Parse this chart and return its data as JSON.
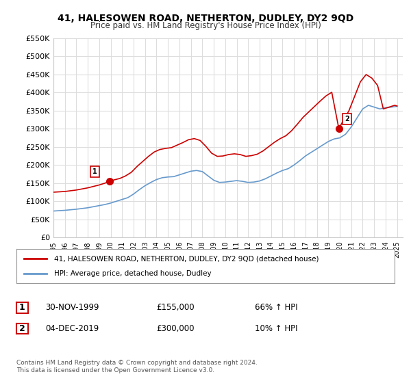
{
  "title": "41, HALESOWEN ROAD, NETHERTON, DUDLEY, DY2 9QD",
  "subtitle": "Price paid vs. HM Land Registry's House Price Index (HPI)",
  "legend_line1": "41, HALESOWEN ROAD, NETHERTON, DUDLEY, DY2 9QD (detached house)",
  "legend_line2": "HPI: Average price, detached house, Dudley",
  "annotation1_label": "1",
  "annotation1_date": "30-NOV-1999",
  "annotation1_price": "£155,000",
  "annotation1_hpi": "66% ↑ HPI",
  "annotation2_label": "2",
  "annotation2_date": "04-DEC-2019",
  "annotation2_price": "£300,000",
  "annotation2_hpi": "10% ↑ HPI",
  "footnote": "Contains HM Land Registry data © Crown copyright and database right 2024.\nThis data is licensed under the Open Government Licence v3.0.",
  "ylim": [
    0,
    550000
  ],
  "yticks": [
    0,
    50000,
    100000,
    150000,
    200000,
    250000,
    300000,
    350000,
    400000,
    450000,
    500000,
    550000
  ],
  "ytick_labels": [
    "£0",
    "£50K",
    "£100K",
    "£150K",
    "£200K",
    "£250K",
    "£300K",
    "£350K",
    "£400K",
    "£450K",
    "£500K",
    "£550K"
  ],
  "xlim_start": 1995.0,
  "xlim_end": 2025.5,
  "xticks": [
    1995,
    1996,
    1997,
    1998,
    1999,
    2000,
    2001,
    2002,
    2003,
    2004,
    2005,
    2006,
    2007,
    2008,
    2009,
    2010,
    2011,
    2012,
    2013,
    2014,
    2015,
    2016,
    2017,
    2018,
    2019,
    2020,
    2021,
    2022,
    2023,
    2024,
    2025
  ],
  "red_color": "#cc0000",
  "blue_color": "#6699cc",
  "marker_color": "#cc0000",
  "grid_color": "#dddddd",
  "background_color": "#ffffff",
  "point1_x": 1999.92,
  "point1_y": 155000,
  "point2_x": 2019.92,
  "point2_y": 300000,
  "hpi_x": [
    1995.0,
    1995.5,
    1996.0,
    1996.5,
    1997.0,
    1997.5,
    1998.0,
    1998.5,
    1999.0,
    1999.5,
    2000.0,
    2000.5,
    2001.0,
    2001.5,
    2002.0,
    2002.5,
    2003.0,
    2003.5,
    2004.0,
    2004.5,
    2005.0,
    2005.5,
    2006.0,
    2006.5,
    2007.0,
    2007.5,
    2008.0,
    2008.5,
    2009.0,
    2009.5,
    2010.0,
    2010.5,
    2011.0,
    2011.5,
    2012.0,
    2012.5,
    2013.0,
    2013.5,
    2014.0,
    2014.5,
    2015.0,
    2015.5,
    2016.0,
    2016.5,
    2017.0,
    2017.5,
    2018.0,
    2018.5,
    2019.0,
    2019.5,
    2020.0,
    2020.5,
    2021.0,
    2021.5,
    2022.0,
    2022.5,
    2023.0,
    2023.5,
    2024.0,
    2024.5,
    2025.0
  ],
  "hpi_y": [
    73000,
    74000,
    75000,
    76500,
    78000,
    80000,
    82000,
    85000,
    88000,
    91000,
    95000,
    100000,
    105000,
    110000,
    120000,
    132000,
    143000,
    152000,
    160000,
    165000,
    167000,
    168000,
    173000,
    178000,
    183000,
    185000,
    182000,
    170000,
    158000,
    152000,
    153000,
    155000,
    157000,
    155000,
    152000,
    153000,
    156000,
    162000,
    170000,
    178000,
    185000,
    190000,
    200000,
    212000,
    225000,
    235000,
    245000,
    255000,
    265000,
    272000,
    275000,
    285000,
    305000,
    330000,
    355000,
    365000,
    360000,
    355000,
    358000,
    360000,
    362000
  ],
  "red_x": [
    1995.0,
    1995.5,
    1996.0,
    1996.5,
    1997.0,
    1997.5,
    1998.0,
    1998.5,
    1999.0,
    1999.5,
    1999.92,
    2000.3,
    2000.8,
    2001.3,
    2001.8,
    2002.3,
    2002.8,
    2003.3,
    2003.8,
    2004.3,
    2004.8,
    2005.3,
    2005.8,
    2006.3,
    2006.8,
    2007.3,
    2007.8,
    2008.3,
    2008.8,
    2009.3,
    2009.8,
    2010.3,
    2010.8,
    2011.3,
    2011.8,
    2012.3,
    2012.8,
    2013.3,
    2013.8,
    2014.3,
    2014.8,
    2015.3,
    2015.8,
    2016.3,
    2016.8,
    2017.3,
    2017.8,
    2018.3,
    2018.8,
    2019.3,
    2019.92,
    2020.3,
    2020.8,
    2021.3,
    2021.8,
    2022.3,
    2022.8,
    2023.3,
    2023.8,
    2024.3,
    2024.8,
    2025.0
  ],
  "red_y": [
    125000,
    126000,
    127000,
    129000,
    131000,
    134000,
    137000,
    141000,
    145000,
    150000,
    155000,
    159000,
    163000,
    170000,
    180000,
    196000,
    210000,
    224000,
    236000,
    243000,
    246000,
    248000,
    255000,
    262000,
    270000,
    273000,
    268000,
    252000,
    233000,
    224000,
    225000,
    229000,
    231000,
    229000,
    224000,
    226000,
    230000,
    239000,
    251000,
    263000,
    273000,
    281000,
    295000,
    313000,
    332000,
    347000,
    362000,
    377000,
    391000,
    401000,
    300000,
    323000,
    350000,
    390000,
    430000,
    450000,
    440000,
    420000,
    355000,
    360000,
    365000,
    363000
  ]
}
